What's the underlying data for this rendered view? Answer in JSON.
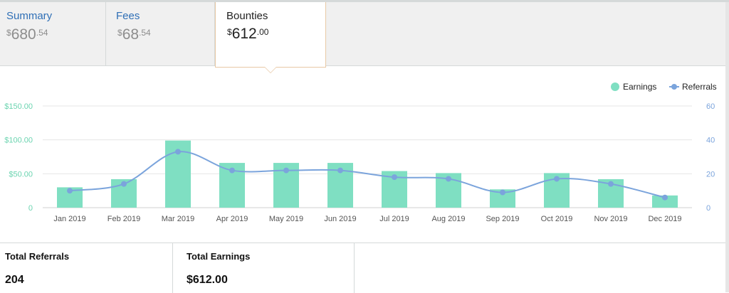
{
  "tabs": [
    {
      "label": "Summary",
      "currency": "$",
      "whole": "680",
      "cents": ".54",
      "active": false
    },
    {
      "label": "Fees",
      "currency": "$",
      "whole": "68",
      "cents": ".54",
      "active": false
    },
    {
      "label": "Bounties",
      "currency": "$",
      "whole": "612",
      "cents": ".00",
      "active": true
    }
  ],
  "colors": {
    "earnings": "#7fdfc2",
    "referrals": "#7ba4dc",
    "link": "#2f6fb6",
    "axis_left": "#6bd4b0",
    "axis_right": "#7ba4dc"
  },
  "chart_data": {
    "type": "bar",
    "categories": [
      "Jan 2019",
      "Feb 2019",
      "Mar 2019",
      "Apr 2019",
      "May 2019",
      "Jun 2019",
      "Jul 2019",
      "Aug 2019",
      "Sep 2019",
      "Oct 2019",
      "Nov 2019",
      "Dec 2019"
    ],
    "series": [
      {
        "name": "Earnings",
        "type": "bar",
        "axis": "left",
        "values": [
          30,
          42,
          99,
          66,
          66,
          66,
          54,
          51,
          27,
          51,
          42,
          18
        ]
      },
      {
        "name": "Referrals",
        "type": "line",
        "axis": "right",
        "smooth": true,
        "values": [
          10,
          14,
          33,
          22,
          22,
          22,
          18,
          17,
          9,
          17,
          14,
          6
        ]
      }
    ],
    "y_left": {
      "ticks": [
        "$150.00",
        "$100.00",
        "$50.00",
        "0"
      ],
      "range": [
        0,
        150
      ]
    },
    "y_right": {
      "ticks": [
        "60",
        "40",
        "20",
        "0"
      ],
      "range": [
        0,
        60
      ]
    },
    "legend": {
      "position": "top-right",
      "items": [
        "Earnings",
        "Referrals"
      ]
    },
    "grid": true
  },
  "summary": [
    {
      "title": "Total Referrals",
      "value": "204"
    },
    {
      "title": "Total Earnings",
      "value": "$612.00"
    }
  ]
}
